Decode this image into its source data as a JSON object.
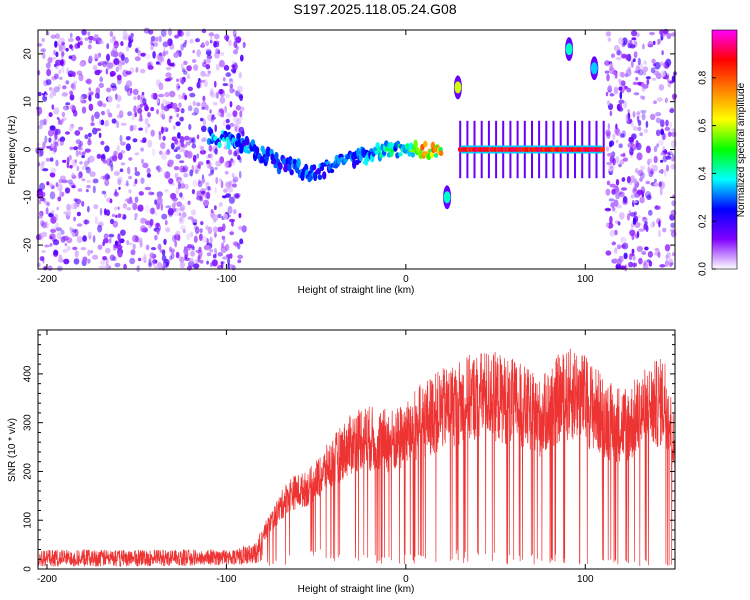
{
  "title": "S197.2025.118.05.24.G08",
  "chart_data": [
    {
      "type": "heatmap",
      "xlabel": "Height of straight line (km)",
      "ylabel": "Frequency (Hz)",
      "xlim": [
        -205,
        150
      ],
      "ylim": [
        -25,
        25
      ],
      "xticks": [
        -200,
        -100,
        0,
        100
      ],
      "yticks": [
        -20,
        -10,
        0,
        10,
        20
      ],
      "colorbar": {
        "label": "Normalized spectral amplitude",
        "range": [
          0.0,
          1.0
        ],
        "ticks": [
          0.0,
          0.2,
          0.4,
          0.6,
          0.8
        ],
        "colormap": [
          "#ffffff",
          "#8000ff",
          "#0000ff",
          "#00ffff",
          "#00ff00",
          "#ffff00",
          "#ff8000",
          "#ff0000",
          "#ff00ff"
        ]
      },
      "features": [
        {
          "desc": "noise",
          "x_range": [
            -205,
            -90
          ],
          "freq_range": [
            -25,
            25
          ],
          "amplitude": 0.12
        },
        {
          "desc": "noise",
          "x_range": [
            112,
            150
          ],
          "freq_range": [
            -25,
            25
          ],
          "amplitude": 0.12
        },
        {
          "desc": "signal",
          "x": [
            -110,
            -100,
            -90,
            -80,
            -70,
            -60,
            -50,
            -40,
            -30,
            -20,
            -10,
            0,
            10,
            20
          ],
          "freq": [
            3,
            2,
            1,
            -1,
            -3,
            -4,
            -5,
            -3,
            -2,
            -1,
            0,
            0,
            0,
            0
          ],
          "amplitude": [
            0.3,
            0.35,
            0.3,
            0.3,
            0.3,
            0.3,
            0.3,
            0.3,
            0.3,
            0.35,
            0.4,
            0.4,
            0.7,
            0.7
          ]
        },
        {
          "desc": "signal",
          "x_range": [
            30,
            110
          ],
          "freq": 0,
          "amplitude": 0.95
        },
        {
          "desc": "spot",
          "x": 29,
          "freq": 13,
          "amplitude": 0.6
        },
        {
          "desc": "spot",
          "x": 23,
          "freq": -10,
          "amplitude": 0.4
        },
        {
          "desc": "spot",
          "x": 91,
          "freq": 21,
          "amplitude": 0.4
        },
        {
          "desc": "spot",
          "x": 105,
          "freq": 17,
          "amplitude": 0.35
        }
      ]
    },
    {
      "type": "line",
      "xlabel": "Height of straight line (km)",
      "ylabel": "SNR (10 * v/v)",
      "xlim": [
        -205,
        150
      ],
      "ylim": [
        0,
        490
      ],
      "xticks": [
        -200,
        -100,
        0,
        100
      ],
      "yticks": [
        0,
        100,
        200,
        300,
        400
      ],
      "color": "#ee3333",
      "envelope": {
        "x": [
          -205,
          -150,
          -100,
          -85,
          -75,
          -65,
          -55,
          -45,
          -35,
          -25,
          -15,
          -5,
          5,
          15,
          25,
          35,
          45,
          55,
          65,
          75,
          85,
          95,
          105,
          115,
          125,
          135,
          145,
          150
        ],
        "low": [
          5,
          5,
          8,
          10,
          20,
          30,
          40,
          40,
          40,
          35,
          30,
          30,
          30,
          30,
          40,
          40,
          40,
          30,
          30,
          30,
          30,
          20,
          20,
          20,
          20,
          20,
          20,
          20
        ],
        "high": [
          40,
          40,
          40,
          50,
          120,
          190,
          200,
          250,
          300,
          340,
          330,
          330,
          370,
          400,
          420,
          440,
          450,
          440,
          420,
          390,
          440,
          460,
          420,
          380,
          380,
          420,
          440,
          300
        ]
      }
    }
  ]
}
